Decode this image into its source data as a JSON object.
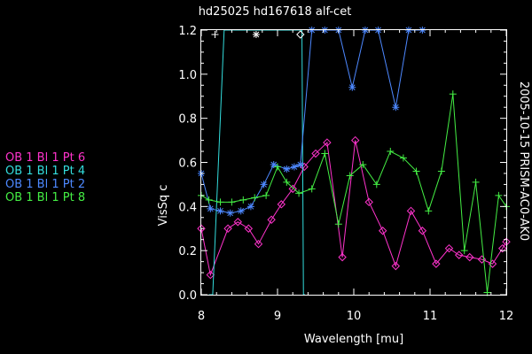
{
  "chart_data": {
    "type": "line",
    "title": "hd25025   hd167618 alf-cet",
    "side_label": "2005-10-15 PRISM-AC0-AK0",
    "xlabel": "Wavelength [mu]",
    "ylabel": "VisSq c",
    "xlim": [
      8,
      12
    ],
    "ylim": [
      0,
      1.2
    ],
    "x_ticks": [
      "8",
      "9",
      "10",
      "11",
      "12"
    ],
    "y_ticks": [
      "0.0",
      "0.2",
      "0.4",
      "0.6",
      "0.8",
      "1.0",
      "1.2"
    ],
    "series": [
      {
        "name": "OB 1 Bl 1 Pt 6",
        "color": "#ff33cc",
        "marker": "diamond",
        "x": [
          8.0,
          8.12,
          8.35,
          8.48,
          8.62,
          8.75,
          8.92,
          9.05,
          9.2,
          9.35,
          9.5,
          9.65,
          9.85,
          10.02,
          10.2,
          10.38,
          10.55,
          10.75,
          10.9,
          11.08,
          11.25,
          11.38,
          11.52,
          11.68,
          11.82,
          11.95,
          12.0
        ],
        "y": [
          0.3,
          0.09,
          0.3,
          0.33,
          0.3,
          0.23,
          0.34,
          0.41,
          0.48,
          0.58,
          0.64,
          0.69,
          0.17,
          0.7,
          0.42,
          0.29,
          0.13,
          0.38,
          0.29,
          0.14,
          0.21,
          0.18,
          0.17,
          0.16,
          0.14,
          0.21,
          0.24
        ]
      },
      {
        "name": "OB 1 Bl 1 Pt 4",
        "color": "#33dddd",
        "marker": "none",
        "x": [
          8.1,
          8.15,
          8.3,
          8.33,
          9.3,
          9.32,
          9.34,
          9.36
        ],
        "y": [
          0.0,
          0.0,
          1.2,
          1.2,
          1.2,
          1.2,
          0.0,
          0.0
        ]
      },
      {
        "name": "OB 1 Bl 1 Pt 2",
        "color": "#4d88ff",
        "marker": "asterisk",
        "x": [
          8.0,
          8.12,
          8.25,
          8.38,
          8.52,
          8.65,
          8.82,
          8.95,
          9.12,
          9.22,
          9.3,
          9.45,
          9.62,
          9.8,
          9.98,
          10.15,
          10.32,
          10.55,
          10.72,
          10.9
        ],
        "y": [
          0.55,
          0.39,
          0.38,
          0.37,
          0.38,
          0.4,
          0.5,
          0.59,
          0.57,
          0.58,
          0.59,
          1.2,
          1.2,
          1.2,
          0.94,
          1.2,
          1.2,
          0.85,
          1.2,
          1.2
        ]
      },
      {
        "name": "OB 1 Bl 1 Pt 8",
        "color": "#44ee44",
        "marker": "plus",
        "x": [
          8.0,
          8.1,
          8.25,
          8.4,
          8.55,
          8.7,
          8.85,
          9.0,
          9.12,
          9.28,
          9.45,
          9.62,
          9.8,
          9.95,
          10.12,
          10.3,
          10.48,
          10.65,
          10.82,
          10.98,
          11.15,
          11.3,
          11.45,
          11.6,
          11.75,
          11.9,
          12.0
        ],
        "y": [
          0.45,
          0.43,
          0.42,
          0.42,
          0.43,
          0.44,
          0.45,
          0.58,
          0.51,
          0.46,
          0.48,
          0.64,
          0.32,
          0.54,
          0.59,
          0.5,
          0.65,
          0.62,
          0.56,
          0.38,
          0.56,
          0.91,
          0.2,
          0.51,
          0.01,
          0.45,
          0.4
        ]
      }
    ],
    "extra_markers": [
      {
        "x": 8.18,
        "y": 1.18,
        "marker": "plus",
        "color": "#ffffff"
      },
      {
        "x": 8.72,
        "y": 1.18,
        "marker": "asterisk",
        "color": "#ffffff"
      },
      {
        "x": 9.3,
        "y": 1.18,
        "marker": "diamond",
        "color": "#ffffff"
      }
    ]
  },
  "legend": [
    {
      "label": "OB 1 Bl 1 Pt 6",
      "color": "#ff33cc"
    },
    {
      "label": "OB 1 Bl 1 Pt 4",
      "color": "#33dddd"
    },
    {
      "label": "OB 1 Bl 1 Pt 2",
      "color": "#4d88ff"
    },
    {
      "label": "OB 1 Bl 1 Pt 8",
      "color": "#44ee44"
    }
  ]
}
